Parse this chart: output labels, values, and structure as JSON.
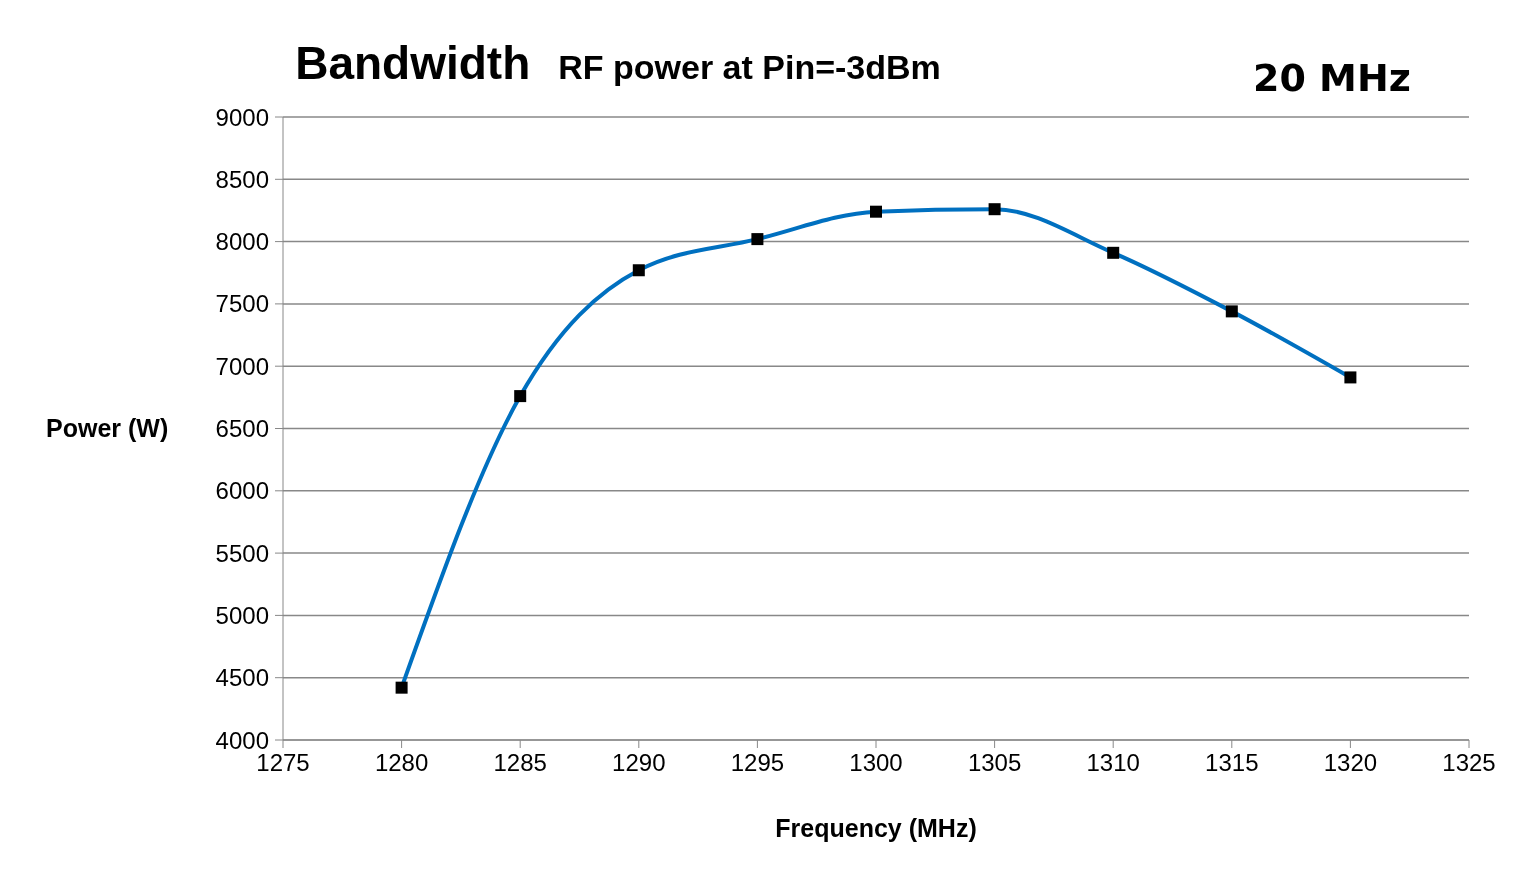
{
  "chart_data": {
    "type": "line",
    "title": "Bandwidth",
    "subtitle": "RF power at Pin=-3dBm",
    "annotations": [
      "20 MHz"
    ],
    "xlabel": "Frequency (MHz)",
    "ylabel": "Power (W)",
    "x": [
      1280,
      1285,
      1290,
      1295,
      1300,
      1305,
      1310,
      1315,
      1320
    ],
    "series": [
      {
        "color": "#0070c0",
        "values": [
          4420,
          6760,
          7770,
          8020,
          8240,
          8260,
          7910,
          7440,
          6910
        ]
      }
    ],
    "xlim": [
      1275,
      1325
    ],
    "xticks": [
      1275,
      1280,
      1285,
      1290,
      1295,
      1300,
      1305,
      1310,
      1315,
      1320,
      1325
    ],
    "ylim": [
      4000,
      9000
    ],
    "yticks": [
      4000,
      4500,
      5000,
      5500,
      6000,
      6500,
      7000,
      7500,
      8000,
      8500,
      9000
    ],
    "grid": "y",
    "legend": false,
    "marker": "square",
    "line_style": "solid"
  }
}
